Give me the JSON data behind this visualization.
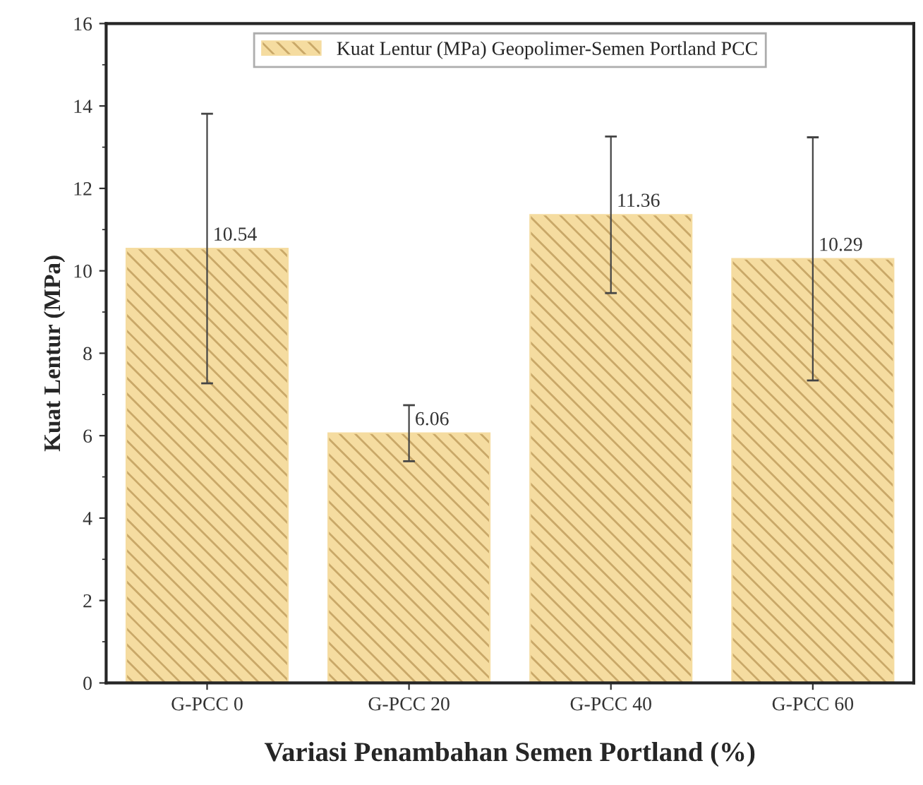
{
  "chart_data": {
    "type": "bar",
    "xlabel": "Variasi Penambahan Semen Portland (%)",
    "ylabel": "Kuat Lentur (MPa)",
    "categories": [
      "G-PCC 0",
      "G-PCC 20",
      "G-PCC 40",
      "G-PCC 60"
    ],
    "series": [
      {
        "name": "Kuat Lentur (MPa) Geopolimer-Semen Portland PCC",
        "color": "#f5dca0",
        "values": [
          10.54,
          6.06,
          11.36,
          10.29
        ],
        "errors": [
          3.27,
          0.68,
          1.9,
          2.95
        ]
      }
    ],
    "ylim": [
      0,
      16
    ],
    "yticks": [
      0,
      2,
      4,
      6,
      8,
      10,
      12,
      14,
      16
    ],
    "data_labels": true,
    "legend": "top",
    "grid": false
  }
}
